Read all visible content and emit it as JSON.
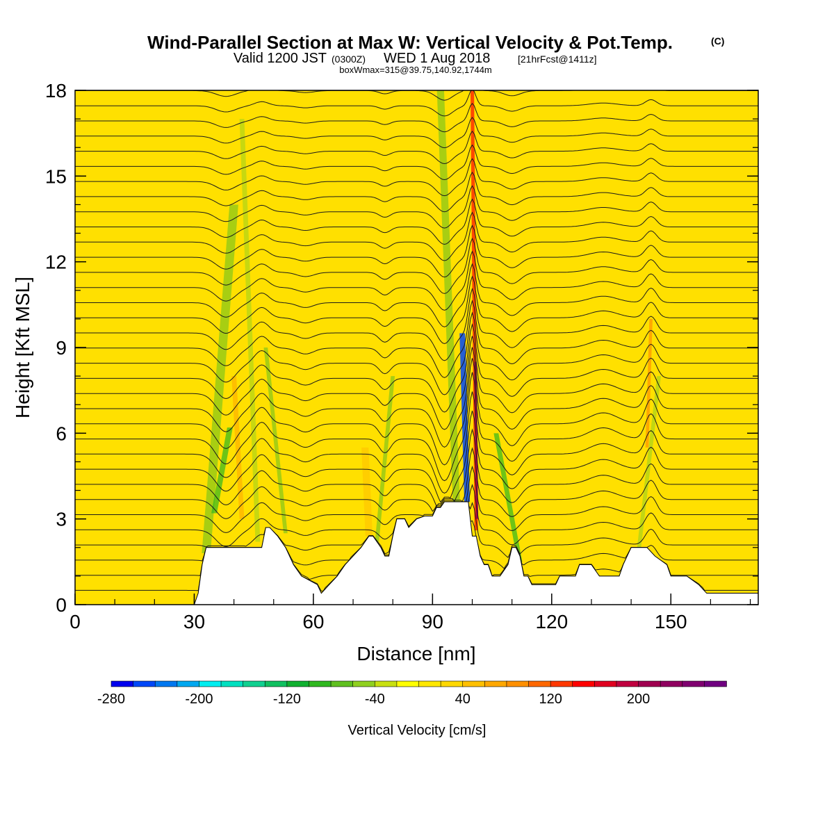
{
  "title": {
    "line1": "Wind-Parallel Section at Max W: Vertical Velocity & Pot.Temp.",
    "line1_mark": "(C)",
    "line2_a": "Valid 1200 JST",
    "line2_b": "(0300Z)",
    "line2_c": "WED 1 Aug 2018",
    "line2_d": "[21hrFcst@1411z]",
    "line3": "boxWmax=315@39.75,140.92,1744m"
  },
  "chart_data": {
    "type": "heatmap",
    "xlabel": "Distance [nm]",
    "ylabel": "Height [Kft MSL]",
    "xlim": [
      0,
      172
    ],
    "ylim": [
      0,
      18
    ],
    "x_ticks": [
      "0",
      "30",
      "60",
      "90",
      "120",
      "150"
    ],
    "x_tick_values": [
      0,
      30,
      60,
      90,
      120,
      150
    ],
    "y_ticks": [
      "0",
      "3",
      "6",
      "9",
      "12",
      "15",
      "18"
    ],
    "y_tick_values": [
      0,
      3,
      6,
      9,
      12,
      15,
      18
    ],
    "terrain": {
      "x": [
        0,
        30,
        31,
        32,
        33,
        35,
        47,
        48,
        49,
        51,
        53,
        55,
        57,
        61,
        62,
        64,
        66,
        68,
        70,
        72,
        74,
        75,
        77,
        78,
        79,
        80,
        81,
        83,
        84,
        86,
        88,
        90,
        91,
        92,
        93,
        94,
        95,
        96,
        97,
        98,
        99,
        100,
        101,
        102,
        103,
        104,
        105,
        107,
        109,
        110,
        111,
        112,
        113,
        114,
        115,
        117,
        119,
        121,
        122,
        124,
        126,
        127,
        130,
        132,
        134,
        137,
        138,
        140,
        144,
        146,
        149,
        150,
        151,
        152,
        154,
        157,
        159,
        160,
        172
      ],
      "height": [
        0,
        0,
        0.4,
        1.4,
        2.0,
        2.0,
        2.0,
        2.7,
        2.7,
        2.4,
        2.0,
        1.4,
        1.0,
        0.7,
        0.4,
        0.7,
        1.0,
        1.4,
        1.7,
        2.0,
        2.4,
        2.4,
        2.0,
        1.7,
        1.7,
        2.4,
        3.0,
        3.0,
        2.7,
        3.0,
        3.1,
        3.1,
        3.4,
        3.4,
        3.6,
        3.6,
        3.6,
        3.6,
        3.6,
        3.6,
        3.6,
        2.4,
        2.4,
        1.7,
        1.4,
        1.4,
        1.0,
        1.0,
        1.4,
        2.0,
        2.0,
        1.7,
        1.0,
        1.0,
        0.7,
        0.7,
        0.7,
        0.7,
        1.0,
        1.0,
        1.0,
        1.4,
        1.4,
        1.0,
        1.0,
        1.0,
        1.4,
        2.0,
        2.0,
        1.7,
        1.4,
        1.0,
        1.0,
        1.0,
        1.0,
        0.7,
        0.4,
        0.4,
        0.4
      ]
    },
    "legend": {
      "title": "Vertical Velocity [cm/s]",
      "placement": "bottom",
      "levels": [
        -280,
        -260,
        -240,
        -220,
        -200,
        -180,
        -160,
        -140,
        -120,
        -100,
        -80,
        -60,
        -40,
        -20,
        0,
        20,
        40,
        60,
        80,
        100,
        120,
        140,
        160,
        180,
        200,
        220,
        240,
        260
      ],
      "labels": [
        "-280",
        "-200",
        "-120",
        "-40",
        "40",
        "120",
        "200"
      ],
      "label_values": [
        -280,
        -200,
        -120,
        -40,
        40,
        120,
        200
      ],
      "colors": [
        "#0000ee",
        "#0048f8",
        "#0078f0",
        "#00a8f0",
        "#00eef0",
        "#00e0c0",
        "#10d090",
        "#10c060",
        "#10b030",
        "#30b820",
        "#60c020",
        "#90d020",
        "#c8e010",
        "#ffff00",
        "#ffe800",
        "#ffd800",
        "#ffc000",
        "#ffa800",
        "#ff9000",
        "#ff6800",
        "#ff3800",
        "#ff0000",
        "#e00020",
        "#c00040",
        "#a00050",
        "#900060",
        "#800070",
        "#700080"
      ]
    }
  }
}
